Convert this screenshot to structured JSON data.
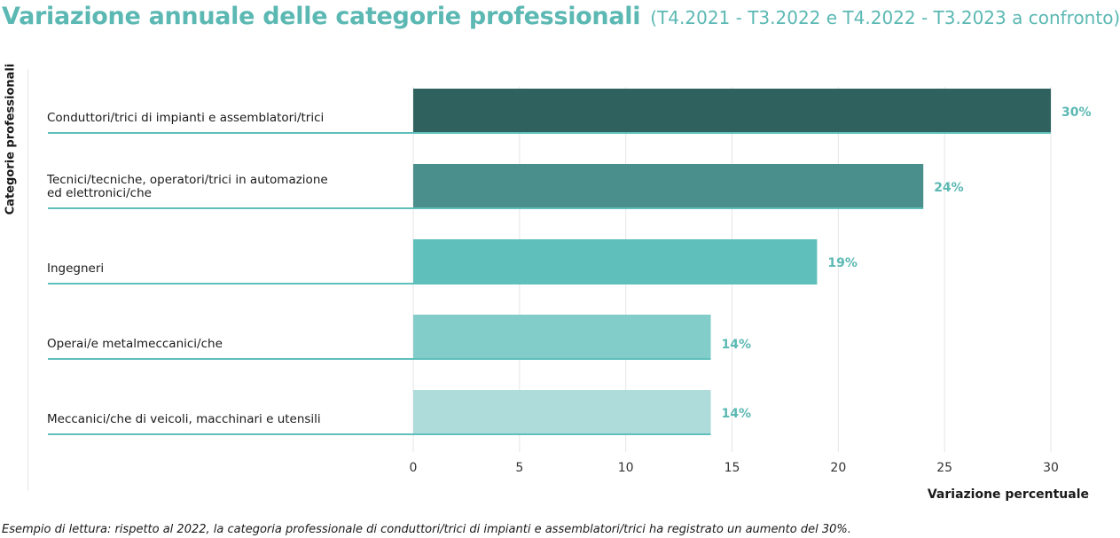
{
  "title": "Variazione annuale delle categorie professionali",
  "subtitle": "(T4.2021 - T3.2022 e T4.2022 - T3.2023 a confronto)",
  "footnote": "Esempio di lettura: rispetto al 2022, la categoria professionale di conduttori/trici di impianti e assemblatori/trici ha registrato un aumento del 30%.",
  "colors": {
    "title": "#5bb8b3",
    "value_label": "#5bb8b3",
    "bars": [
      "#2f625f",
      "#4a8f8b",
      "#5fbfbb",
      "#82ccc9",
      "#addcda"
    ],
    "baseline": "#5fbfbb",
    "grid": "#e6e6e6"
  },
  "chart_data": {
    "type": "bar",
    "orientation": "horizontal",
    "title": "Variazione annuale delle categorie professionali",
    "subtitle": "(T4.2021 - T3.2022 e T4.2022 - T3.2023 a confronto)",
    "xlabel": "Variazione percentuale",
    "ylabel": "Categorie professionali",
    "categories": [
      [
        "Conduttori/trici di impianti e assemblatori/trici"
      ],
      [
        "Tecnici/tecniche, operatori/trici in automazione",
        "ed elettronici/che"
      ],
      [
        "Ingegneri"
      ],
      [
        "Operai/e metalmeccanici/che"
      ],
      [
        "Meccanici/che di veicoli, macchinari e utensili"
      ]
    ],
    "values": [
      30,
      24,
      19,
      14,
      14
    ],
    "value_labels": [
      "30%",
      "24%",
      "19%",
      "14%",
      "14%"
    ],
    "xlim": [
      0,
      30
    ],
    "xticks": [
      0,
      5,
      10,
      15,
      20,
      25,
      30
    ],
    "grid": true
  }
}
